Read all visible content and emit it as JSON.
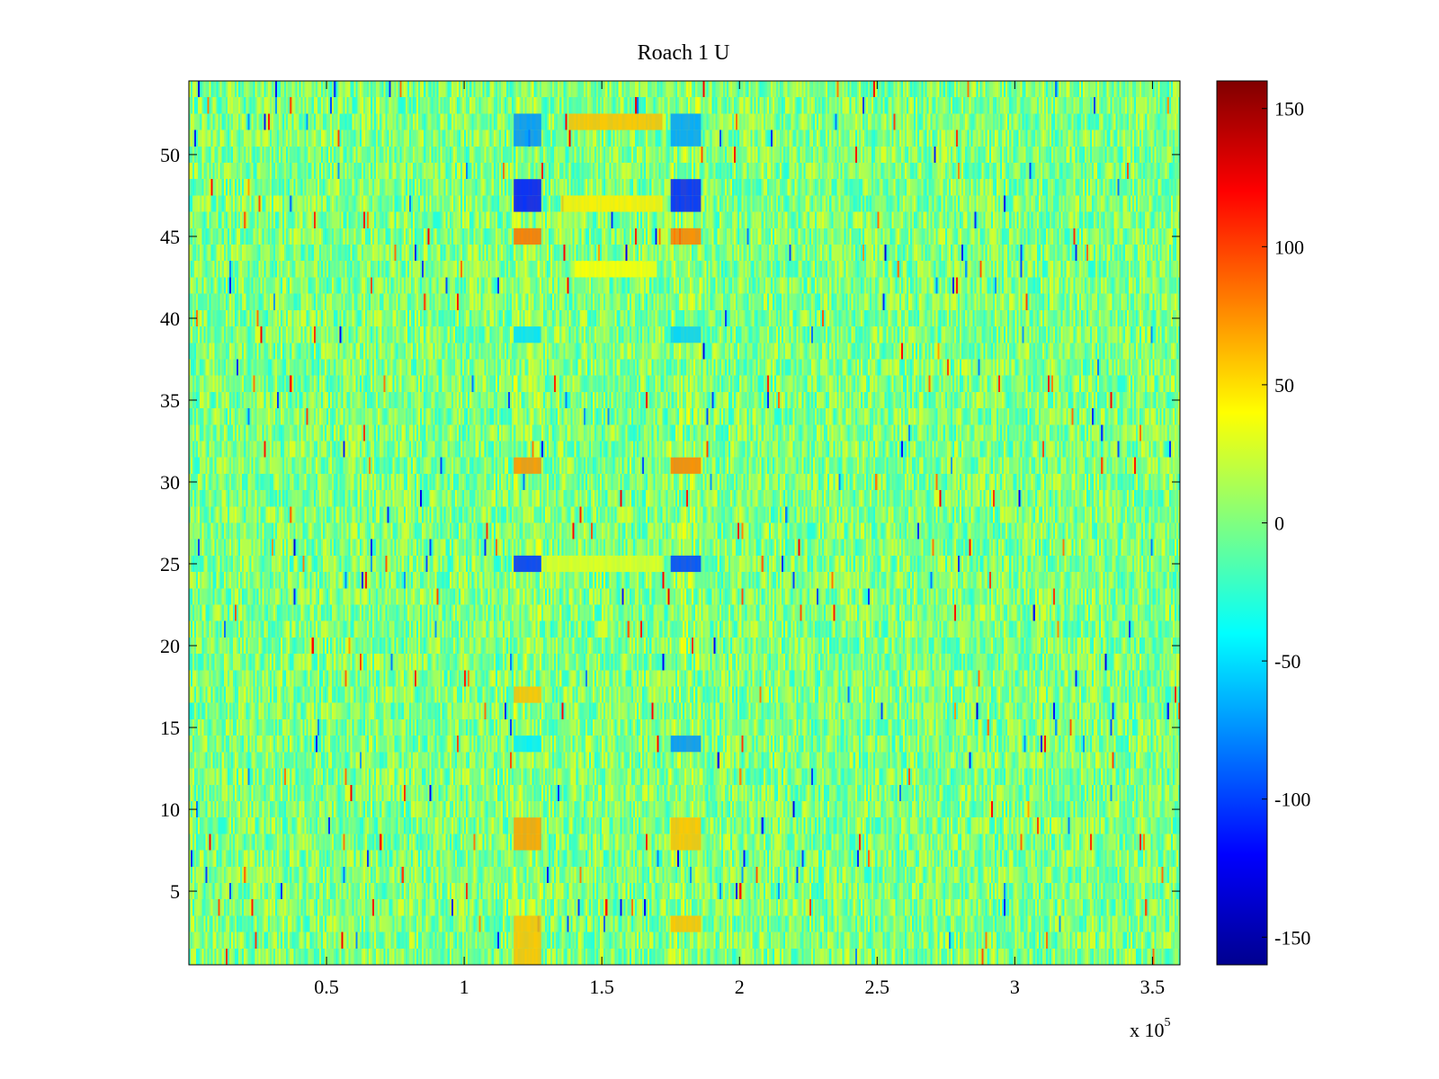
{
  "chart_data": {
    "type": "heatmap",
    "title": "Roach 1 U",
    "xlabel": "",
    "ylabel": "",
    "x_range": [
      0,
      360000
    ],
    "y_range": [
      0.5,
      54.5
    ],
    "rows": 54,
    "x_multiplier_label": "x 10",
    "x_multiplier_exponent": "5",
    "x_ticks": [
      {
        "value": 50000,
        "label": "0.5"
      },
      {
        "value": 100000,
        "label": "1"
      },
      {
        "value": 150000,
        "label": "1.5"
      },
      {
        "value": 200000,
        "label": "2"
      },
      {
        "value": 250000,
        "label": "2.5"
      },
      {
        "value": 300000,
        "label": "3"
      },
      {
        "value": 350000,
        "label": "3.5"
      }
    ],
    "y_ticks": [
      {
        "value": 5,
        "label": "5"
      },
      {
        "value": 10,
        "label": "10"
      },
      {
        "value": 15,
        "label": "15"
      },
      {
        "value": 20,
        "label": "20"
      },
      {
        "value": 25,
        "label": "25"
      },
      {
        "value": 30,
        "label": "30"
      },
      {
        "value": 35,
        "label": "35"
      },
      {
        "value": 40,
        "label": "40"
      },
      {
        "value": 45,
        "label": "45"
      },
      {
        "value": 50,
        "label": "50"
      }
    ],
    "colorbar": {
      "colormap": "jet",
      "range": [
        -160,
        160
      ],
      "ticks": [
        {
          "value": 150,
          "label": "150"
        },
        {
          "value": 100,
          "label": "100"
        },
        {
          "value": 50,
          "label": "50"
        },
        {
          "value": 0,
          "label": "0"
        },
        {
          "value": -50,
          "label": "-50"
        },
        {
          "value": -100,
          "label": "-100"
        },
        {
          "value": -150,
          "label": "-150"
        }
      ]
    },
    "background_value_range": [
      -30,
      30
    ],
    "stimulus_columns_x": [
      [
        118000,
        128000
      ],
      [
        175000,
        186000
      ]
    ],
    "features": [
      {
        "x": [
          118000,
          128000
        ],
        "rows": [
          51,
          52
        ],
        "value": -75
      },
      {
        "x": [
          175000,
          186000
        ],
        "rows": [
          51,
          52
        ],
        "value": -70
      },
      {
        "x": [
          138000,
          172000
        ],
        "rows": [
          52
        ],
        "value": 60
      },
      {
        "x": [
          118000,
          128000
        ],
        "rows": [
          47,
          48
        ],
        "value": -115
      },
      {
        "x": [
          175000,
          186000
        ],
        "rows": [
          47,
          48
        ],
        "value": -110
      },
      {
        "x": [
          135000,
          172000
        ],
        "rows": [
          47
        ],
        "value": 45
      },
      {
        "x": [
          118000,
          128000
        ],
        "rows": [
          45
        ],
        "value": 85
      },
      {
        "x": [
          175000,
          186000
        ],
        "rows": [
          45
        ],
        "value": 80
      },
      {
        "x": [
          140000,
          170000
        ],
        "rows": [
          43
        ],
        "value": 40
      },
      {
        "x": [
          118000,
          128000
        ],
        "rows": [
          39
        ],
        "value": -50
      },
      {
        "x": [
          175000,
          186000
        ],
        "rows": [
          39
        ],
        "value": -55
      },
      {
        "x": [
          118000,
          128000
        ],
        "rows": [
          31
        ],
        "value": 75
      },
      {
        "x": [
          175000,
          186000
        ],
        "rows": [
          31
        ],
        "value": 80
      },
      {
        "x": [
          118000,
          128000
        ],
        "rows": [
          25
        ],
        "value": -105
      },
      {
        "x": [
          175000,
          186000
        ],
        "rows": [
          25
        ],
        "value": -100
      },
      {
        "x": [
          130000,
          172000
        ],
        "rows": [
          25
        ],
        "value": 30
      },
      {
        "x": [
          118000,
          128000
        ],
        "rows": [
          17
        ],
        "value": 60
      },
      {
        "x": [
          118000,
          128000
        ],
        "rows": [
          14
        ],
        "value": -45
      },
      {
        "x": [
          175000,
          186000
        ],
        "rows": [
          14
        ],
        "value": -75
      },
      {
        "x": [
          118000,
          128000
        ],
        "rows": [
          8,
          9
        ],
        "value": 70
      },
      {
        "x": [
          175000,
          186000
        ],
        "rows": [
          8,
          9
        ],
        "value": 60
      },
      {
        "x": [
          118000,
          128000
        ],
        "rows": [
          1,
          2,
          3
        ],
        "value": 60
      },
      {
        "x": [
          175000,
          186000
        ],
        "rows": [
          3
        ],
        "value": 60
      }
    ]
  }
}
